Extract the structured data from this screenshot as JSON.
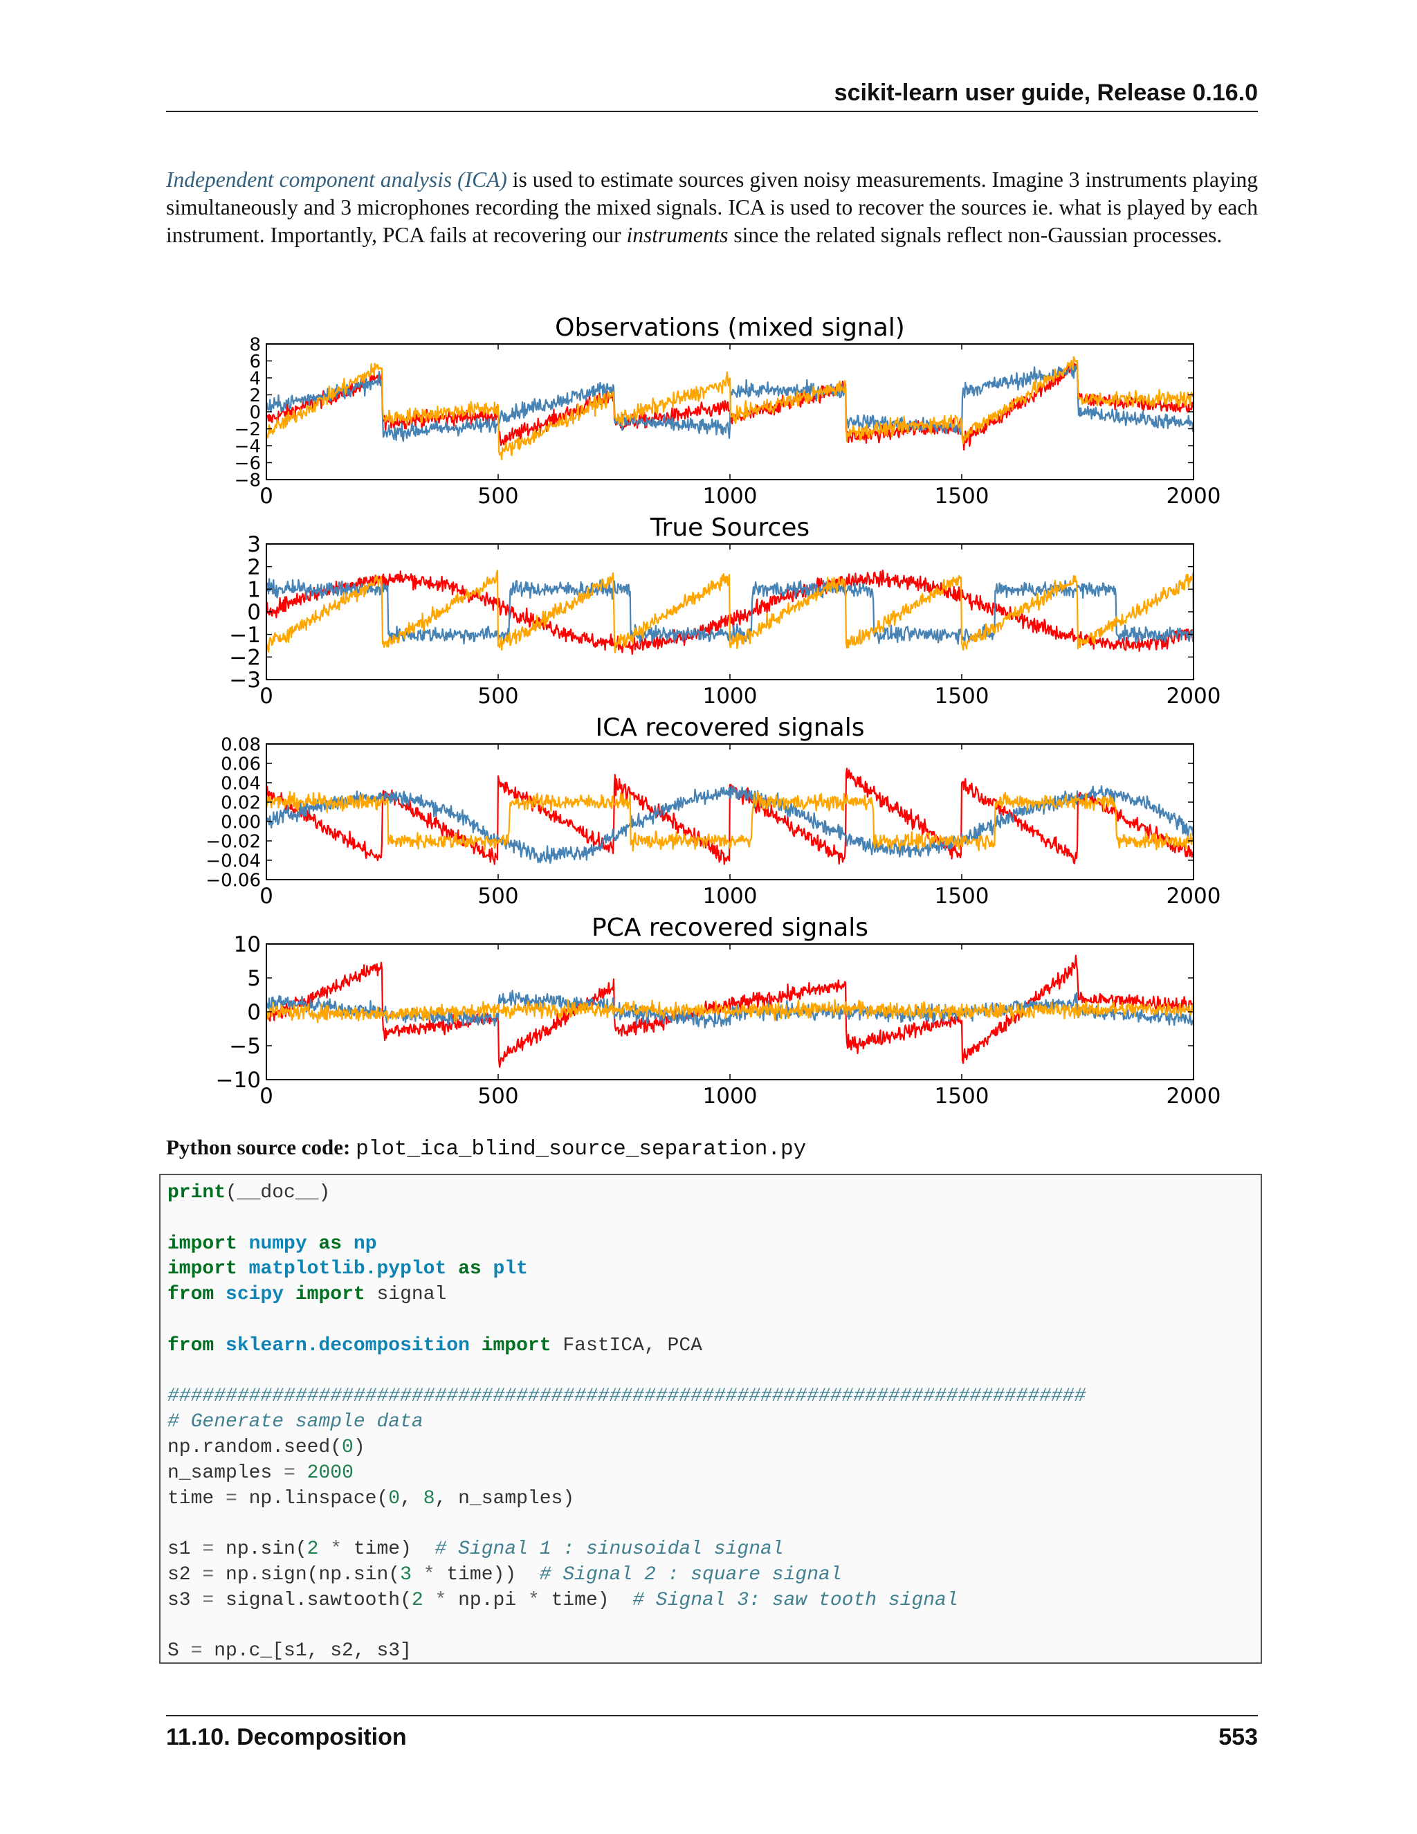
{
  "header": {
    "title": "scikit-learn user guide, Release 0.16.0"
  },
  "intro": {
    "link_text": "Independent component analysis (ICA)",
    "text_1": " is used to estimate sources given noisy measurements. Imagine 3 instruments playing simultaneously and 3 microphones recording the mixed signals. ICA is used to recover the sources ie. what is played by each instrument. Importantly, PCA fails at recovering our ",
    "emphasis": "instruments",
    "text_2": " since the related signals reflect non-Gaussian processes."
  },
  "colors": {
    "series_a": "#ff0000",
    "series_b": "#4682b4",
    "series_c": "#ffa500"
  },
  "chart_data": [
    {
      "type": "line",
      "title": "Observations (mixed signal)",
      "xlim": [
        0,
        2000
      ],
      "ylim": [
        -8,
        8
      ],
      "xticks": [
        "0",
        "500",
        "1000",
        "1500",
        "2000"
      ],
      "yticks": [
        "8",
        "6",
        "4",
        "2",
        "0",
        "−2",
        "−4",
        "−6",
        "−8"
      ],
      "grid": false,
      "series": [
        {
          "color": "#ff0000",
          "x": [
            0,
            250,
            251,
            500,
            501,
            750,
            751,
            1000,
            1001,
            1250,
            1251,
            1500,
            1501,
            1750,
            1751,
            2000
          ],
          "y": [
            -1,
            4,
            -1.2,
            -0.3,
            -3.5,
            2,
            -1.5,
            0.5,
            -1,
            3,
            -3,
            -1.5,
            -3.5,
            5.5,
            1.5,
            0.5
          ]
        },
        {
          "color": "#4682b4",
          "x": [
            0,
            250,
            251,
            500,
            501,
            750,
            751,
            1000,
            1001,
            1250,
            1251,
            1500,
            1501,
            1750,
            1751,
            2000
          ],
          "y": [
            0.5,
            3.5,
            -2.5,
            -1.5,
            -0.5,
            3,
            -1,
            -2,
            2.5,
            2.5,
            -1,
            -2,
            2.5,
            5,
            0,
            -1.5
          ]
        },
        {
          "color": "#ffa500",
          "x": [
            0,
            250,
            251,
            500,
            501,
            750,
            751,
            1000,
            1001,
            1250,
            1251,
            1500,
            1501,
            1750,
            1751,
            2000
          ],
          "y": [
            -2.5,
            5.5,
            -0.8,
            0.5,
            -5,
            2,
            -1,
            3.5,
            -0.5,
            3,
            -2.5,
            -1,
            -3,
            6,
            1.5,
            1.5
          ]
        }
      ]
    },
    {
      "type": "line",
      "title": "True Sources",
      "xlim": [
        0,
        2000
      ],
      "ylim": [
        -3,
        3
      ],
      "xticks": [
        "0",
        "500",
        "1000",
        "1500",
        "2000"
      ],
      "yticks": [
        "3",
        "2",
        "1",
        "0",
        "−1",
        "−2",
        "−3"
      ],
      "grid": false,
      "series": [
        {
          "color": "#ff0000",
          "x": [
            0,
            100,
            200,
            300,
            400,
            500,
            600,
            700,
            800,
            900,
            1000,
            1100,
            1200,
            1300,
            1400,
            1500,
            1600,
            1700,
            1800,
            1900,
            2000
          ],
          "y": [
            0.0,
            0.8,
            1.3,
            1.5,
            1.1,
            0.3,
            -0.6,
            -1.3,
            -1.5,
            -1.2,
            -0.4,
            0.5,
            1.2,
            1.5,
            1.3,
            0.7,
            -0.1,
            -0.9,
            -1.4,
            -1.4,
            -0.9
          ]
        },
        {
          "color": "#4682b4",
          "x": [
            0,
            262,
            263,
            524,
            525,
            785,
            786,
            1047,
            1048,
            1309,
            1310,
            1571,
            1572,
            1833,
            1834,
            2000
          ],
          "y": [
            1,
            1,
            -1,
            -1,
            1,
            1,
            -1,
            -1,
            1,
            1,
            -1,
            -1,
            1,
            1,
            -1,
            -1
          ]
        },
        {
          "color": "#ffa500",
          "x": [
            0,
            249,
            250,
            499,
            500,
            749,
            750,
            999,
            1000,
            1249,
            1250,
            1499,
            1500,
            1749,
            1750,
            1999,
            2000
          ],
          "y": [
            -1.5,
            1.5,
            -1.5,
            1.5,
            -1.5,
            1.5,
            -1.5,
            1.5,
            -1.5,
            1.5,
            -1.5,
            1.5,
            -1.5,
            1.5,
            -1.5,
            1.5,
            -1.5
          ]
        }
      ]
    },
    {
      "type": "line",
      "title": "ICA recovered signals",
      "xlim": [
        0,
        2000
      ],
      "ylim": [
        -0.06,
        0.08
      ],
      "xticks": [
        "0",
        "500",
        "1000",
        "1500",
        "2000"
      ],
      "yticks": [
        "0.08",
        "0.06",
        "0.04",
        "0.02",
        "0.00",
        "−0.02",
        "−0.04",
        "−0.06"
      ],
      "grid": false,
      "series": [
        {
          "color": "#ff0000",
          "x": [
            0,
            249,
            250,
            499,
            500,
            749,
            750,
            999,
            1000,
            1249,
            1250,
            1499,
            1500,
            1749,
            1750,
            2000
          ],
          "y": [
            0.03,
            -0.04,
            0.03,
            -0.04,
            0.04,
            -0.03,
            0.04,
            -0.04,
            0.035,
            -0.04,
            0.05,
            -0.035,
            0.04,
            -0.04,
            0.03,
            -0.035
          ]
        },
        {
          "color": "#4682b4",
          "x": [
            0,
            100,
            200,
            300,
            400,
            500,
            600,
            700,
            800,
            900,
            1000,
            1100,
            1200,
            1300,
            1400,
            1500,
            1600,
            1700,
            1800,
            1900,
            2000
          ],
          "y": [
            0.0,
            0.015,
            0.025,
            0.025,
            0.01,
            -0.02,
            -0.035,
            -0.03,
            0.0,
            0.02,
            0.03,
            0.02,
            -0.005,
            -0.025,
            -0.03,
            -0.02,
            0.005,
            0.02,
            0.03,
            0.02,
            -0.01
          ]
        },
        {
          "color": "#ffa500",
          "x": [
            0,
            262,
            263,
            524,
            525,
            785,
            786,
            1047,
            1048,
            1309,
            1310,
            1571,
            1572,
            1833,
            1834,
            2000
          ],
          "y": [
            0.02,
            0.02,
            -0.02,
            -0.02,
            0.02,
            0.02,
            -0.02,
            -0.02,
            0.02,
            0.02,
            -0.02,
            -0.02,
            0.02,
            0.02,
            -0.02,
            -0.02
          ]
        }
      ]
    },
    {
      "type": "line",
      "title": "PCA recovered signals",
      "xlim": [
        0,
        2000
      ],
      "ylim": [
        -10,
        10
      ],
      "xticks": [
        "0",
        "500",
        "1000",
        "1500",
        "2000"
      ],
      "yticks": [
        "10",
        "5",
        "0",
        "−5",
        "−10"
      ],
      "grid": false,
      "series": [
        {
          "color": "#ff0000",
          "x": [
            0,
            250,
            251,
            500,
            501,
            750,
            751,
            1000,
            1001,
            1250,
            1251,
            1500,
            1501,
            1750,
            1751,
            2000
          ],
          "y": [
            -1,
            7,
            -3,
            -1,
            -7,
            4,
            -3,
            1,
            1,
            4,
            -5,
            -1,
            -7,
            7,
            2,
            1
          ]
        },
        {
          "color": "#4682b4",
          "x": [
            0,
            250,
            251,
            500,
            501,
            750,
            751,
            1000,
            1001,
            1250,
            1251,
            1500,
            1501,
            1750,
            1751,
            2000
          ],
          "y": [
            1.5,
            0,
            -0.5,
            -1,
            2,
            1,
            0,
            -1.5,
            0,
            0,
            0,
            -0.5,
            0,
            1.5,
            0,
            -1
          ]
        },
        {
          "color": "#ffa500",
          "x": [
            0,
            250,
            500,
            750,
            1000,
            1250,
            1500,
            1750,
            2000
          ],
          "y": [
            0,
            -0.3,
            0.3,
            0.5,
            0,
            0.5,
            0,
            0.3,
            0.5
          ]
        }
      ]
    }
  ],
  "source": {
    "label": "Python source code:",
    "filename": "plot_ica_blind_source_separation.py"
  },
  "code_lines": [
    [
      [
        "k",
        "print"
      ],
      [
        "t",
        "(__doc__)"
      ]
    ],
    [],
    [
      [
        "k",
        "import"
      ],
      [
        "t",
        " "
      ],
      [
        "m",
        "numpy"
      ],
      [
        "t",
        " "
      ],
      [
        "k",
        "as"
      ],
      [
        "t",
        " "
      ],
      [
        "m",
        "np"
      ]
    ],
    [
      [
        "k",
        "import"
      ],
      [
        "t",
        " "
      ],
      [
        "m",
        "matplotlib.pyplot"
      ],
      [
        "t",
        " "
      ],
      [
        "k",
        "as"
      ],
      [
        "t",
        " "
      ],
      [
        "m",
        "plt"
      ]
    ],
    [
      [
        "k",
        "from"
      ],
      [
        "t",
        " "
      ],
      [
        "m",
        "scipy"
      ],
      [
        "t",
        " "
      ],
      [
        "k",
        "import"
      ],
      [
        "t",
        " signal"
      ]
    ],
    [],
    [
      [
        "k",
        "from"
      ],
      [
        "t",
        " "
      ],
      [
        "m",
        "sklearn.decomposition"
      ],
      [
        "t",
        " "
      ],
      [
        "k",
        "import"
      ],
      [
        "t",
        " FastICA, PCA"
      ]
    ],
    [],
    [
      [
        "c",
        "###############################################################################"
      ]
    ],
    [
      [
        "c",
        "# Generate sample data"
      ]
    ],
    [
      [
        "t",
        "np.random.seed("
      ],
      [
        "n",
        "0"
      ],
      [
        "t",
        ")"
      ]
    ],
    [
      [
        "t",
        "n_samples "
      ],
      [
        "o",
        "="
      ],
      [
        "t",
        " "
      ],
      [
        "n",
        "2000"
      ]
    ],
    [
      [
        "t",
        "time "
      ],
      [
        "o",
        "="
      ],
      [
        "t",
        " np.linspace("
      ],
      [
        "n",
        "0"
      ],
      [
        "t",
        ", "
      ],
      [
        "n",
        "8"
      ],
      [
        "t",
        ", n_samples)"
      ]
    ],
    [],
    [
      [
        "t",
        "s1 "
      ],
      [
        "o",
        "="
      ],
      [
        "t",
        " np.sin("
      ],
      [
        "n",
        "2"
      ],
      [
        "t",
        " "
      ],
      [
        "o",
        "*"
      ],
      [
        "t",
        " time)  "
      ],
      [
        "c",
        "# Signal 1 : sinusoidal signal"
      ]
    ],
    [
      [
        "t",
        "s2 "
      ],
      [
        "o",
        "="
      ],
      [
        "t",
        " np.sign(np.sin("
      ],
      [
        "n",
        "3"
      ],
      [
        "t",
        " "
      ],
      [
        "o",
        "*"
      ],
      [
        "t",
        " time))  "
      ],
      [
        "c",
        "# Signal 2 : square signal"
      ]
    ],
    [
      [
        "t",
        "s3 "
      ],
      [
        "o",
        "="
      ],
      [
        "t",
        " signal.sawtooth("
      ],
      [
        "n",
        "2"
      ],
      [
        "t",
        " "
      ],
      [
        "o",
        "*"
      ],
      [
        "t",
        " np.pi "
      ],
      [
        "o",
        "*"
      ],
      [
        "t",
        " time)  "
      ],
      [
        "c",
        "# Signal 3: saw tooth signal"
      ]
    ],
    [],
    [
      [
        "t",
        "S "
      ],
      [
        "o",
        "="
      ],
      [
        "t",
        " np.c_[s1, s2, s3]"
      ]
    ]
  ],
  "footer": {
    "section": "11.10. Decomposition",
    "page_number": "553"
  }
}
